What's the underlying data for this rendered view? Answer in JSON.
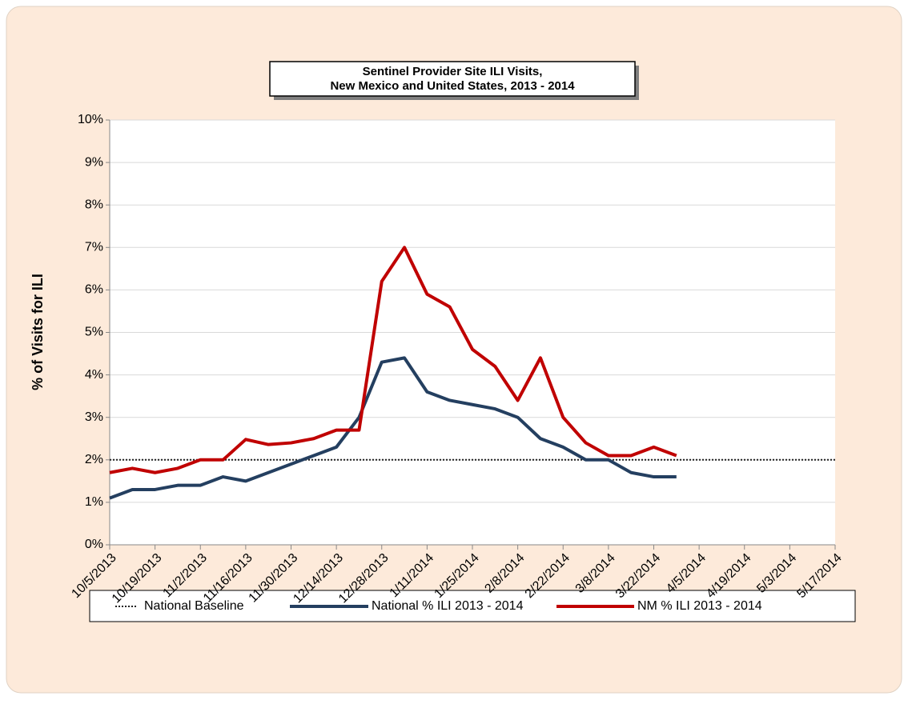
{
  "chart_data": {
    "type": "line",
    "title": [
      "Sentinel Provider Site ILI Visits,",
      "New Mexico and United States, 2013 - 2014"
    ],
    "y_label": "% of Visits for ILI",
    "categories": [
      "10/5/2013",
      null,
      "10/19/2013",
      null,
      "11/2/2013",
      null,
      "11/16/2013",
      null,
      "11/30/2013",
      null,
      "12/14/2013",
      null,
      "12/28/2013",
      null,
      "1/11/2014",
      null,
      "1/25/2014",
      null,
      "2/8/2014",
      null,
      "2/22/2014",
      null,
      "3/8/2014",
      null,
      "3/22/2014",
      null,
      "4/5/2014",
      null,
      "4/19/2014",
      null,
      "5/3/2014",
      null,
      "5/17/2014"
    ],
    "baseline": {
      "name": "National Baseline",
      "value": 2,
      "color": "#222222"
    },
    "series": [
      {
        "name": "National % ILI 2013 - 2014",
        "color": "#243f60",
        "values": [
          1.1,
          1.3,
          1.3,
          1.4,
          1.4,
          1.6,
          1.5,
          1.7,
          1.9,
          2.1,
          2.3,
          3.0,
          4.3,
          4.4,
          3.6,
          3.4,
          3.3,
          3.2,
          3.0,
          2.5,
          2.3,
          2.0,
          2.0,
          1.7,
          1.6,
          1.6,
          null,
          null,
          null,
          null,
          null,
          null,
          null
        ]
      },
      {
        "name": "NM % ILI 2013 - 2014",
        "color": "#c00000",
        "values": [
          1.7,
          1.8,
          1.7,
          1.8,
          2.0,
          2.0,
          2.48,
          2.36,
          2.4,
          2.5,
          2.7,
          2.7,
          6.2,
          7.0,
          5.9,
          5.6,
          4.6,
          4.2,
          3.4,
          4.4,
          3.0,
          2.4,
          2.1,
          2.1,
          2.3,
          2.1,
          null,
          null,
          null,
          null,
          null,
          null,
          null
        ]
      }
    ],
    "ylim": [
      0,
      10
    ],
    "yticks": [
      {
        "value": 0,
        "label": "0%"
      },
      {
        "value": 1,
        "label": "1%"
      },
      {
        "value": 2,
        "label": "2%"
      },
      {
        "value": 3,
        "label": "3%"
      },
      {
        "value": 4,
        "label": "4%"
      },
      {
        "value": 5,
        "label": "5%"
      },
      {
        "value": 6,
        "label": "6%"
      },
      {
        "value": 7,
        "label": "7%"
      },
      {
        "value": 8,
        "label": "8%"
      },
      {
        "value": 9,
        "label": "9%"
      },
      {
        "value": 10,
        "label": "10%"
      }
    ],
    "grid": true,
    "legend": "bottom"
  }
}
